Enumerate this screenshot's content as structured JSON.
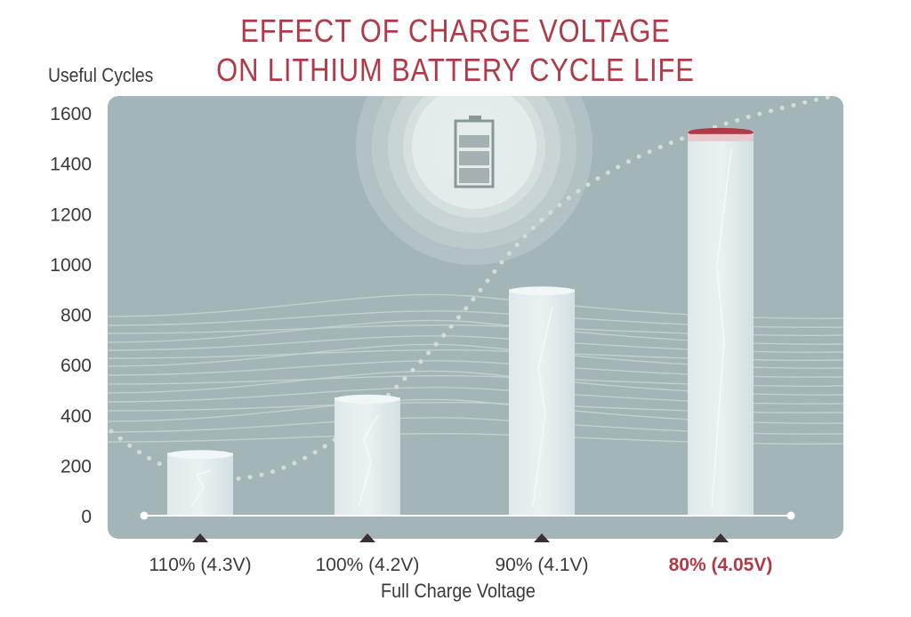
{
  "chart_data": {
    "type": "bar",
    "title": [
      "EFFECT OF CHARGE VOLTAGE",
      "ON LITHIUM BATTERY CYCLE LIFE"
    ],
    "xlabel": "Full Charge Voltage",
    "ylabel": "Useful Cycles",
    "categories": [
      "110% (4.3V)",
      "100% (4.2V)",
      "90% (4.1V)",
      "80% (4.05V)"
    ],
    "values": [
      250,
      470,
      900,
      1530
    ],
    "highlight_index": 3,
    "ylim": [
      0,
      1600
    ],
    "yticks": [
      0,
      200,
      400,
      600,
      800,
      1000,
      1200,
      1400,
      1600
    ],
    "grid": false,
    "legend": "none"
  },
  "colors": {
    "title": "#b03a48",
    "highlight_label": "#b03a48",
    "panel": "#a4b5b7",
    "bar": "#d6e3e6",
    "bar_top": "#f2f6f7",
    "axis": "#ffffff",
    "text": "#3a3a3a",
    "marker": "#3b2f2f"
  },
  "decoration": {
    "icon": "battery-icon"
  }
}
